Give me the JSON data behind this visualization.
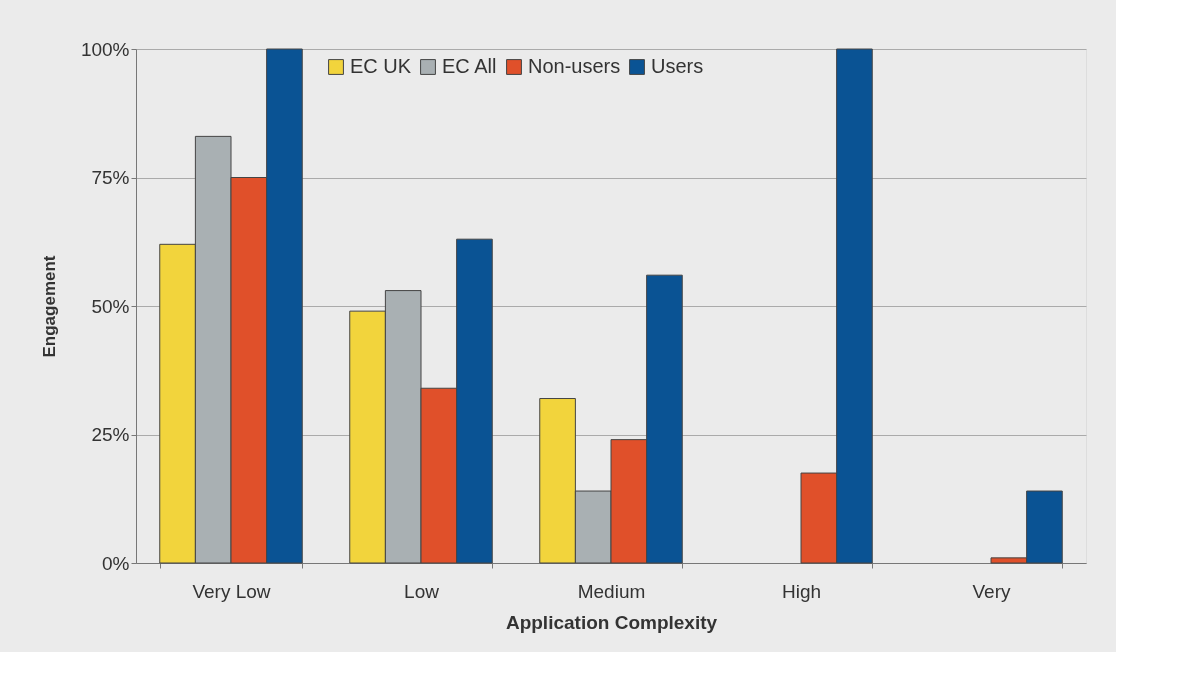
{
  "chart_data": {
    "type": "bar",
    "xlabel": "Application Complexity",
    "ylabel": "Engagement",
    "categories": [
      "Very Low",
      "Low",
      "Medium",
      "High",
      "Very"
    ],
    "series": [
      {
        "name": "EC UK",
        "color": "#f2d43c",
        "values": [
          62,
          49,
          32,
          null,
          null
        ]
      },
      {
        "name": "EC All",
        "color": "#a9b0b3",
        "values": [
          83,
          53,
          14,
          null,
          null
        ]
      },
      {
        "name": "Non-users",
        "color": "#e0502a",
        "values": [
          75,
          34,
          24,
          17.5,
          1
        ]
      },
      {
        "name": "Users",
        "color": "#0a5394",
        "values": [
          100,
          63,
          56,
          100,
          14
        ]
      }
    ],
    "ylim": [
      0,
      100
    ],
    "yticks": [
      {
        "value": 0,
        "label": "0%"
      },
      {
        "value": 25,
        "label": "25%"
      },
      {
        "value": 50,
        "label": "50%"
      },
      {
        "value": 75,
        "label": "75%"
      },
      {
        "value": 100,
        "label": "100%"
      }
    ],
    "grid": "y",
    "legend": "top"
  }
}
